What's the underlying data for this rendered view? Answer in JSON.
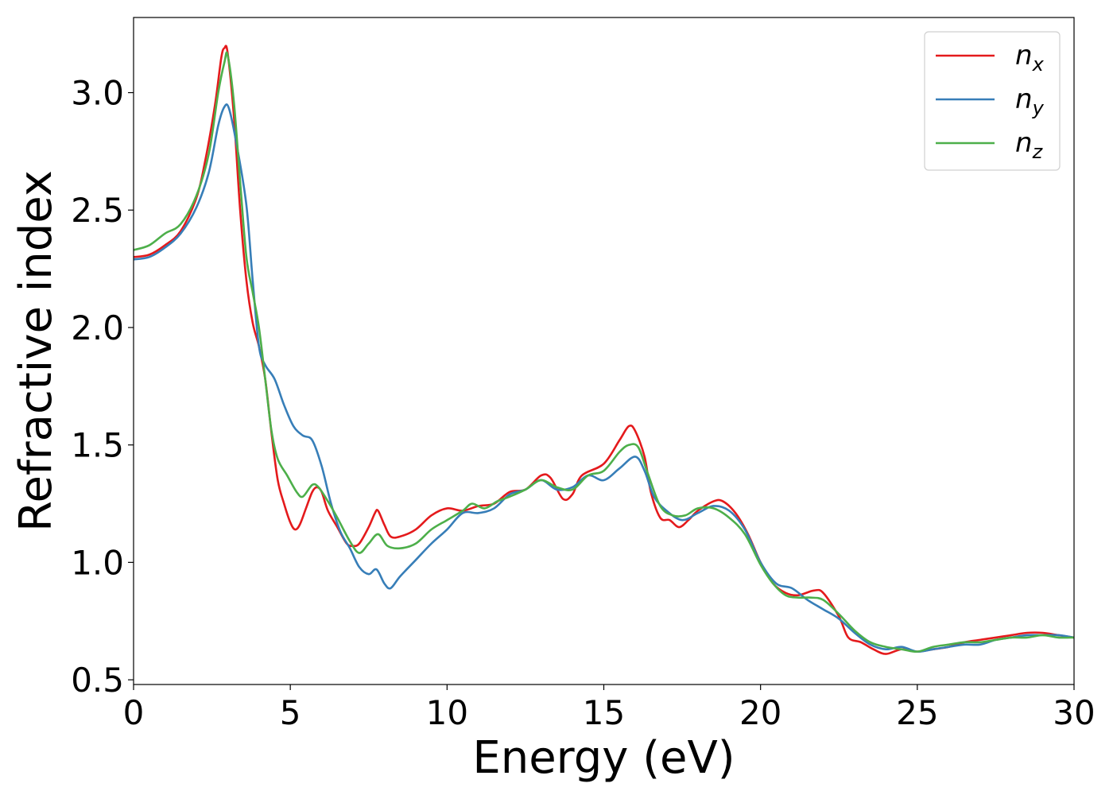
{
  "chart_data": {
    "type": "line",
    "title": "",
    "xlabel": "Energy (eV)",
    "ylabel": "Refractive index",
    "xlim": [
      0,
      30
    ],
    "ylim": [
      0.48,
      3.32
    ],
    "xticks": [
      0,
      5,
      10,
      15,
      20,
      25,
      30
    ],
    "yticks": [
      0.5,
      1.0,
      1.5,
      2.0,
      2.5,
      3.0
    ],
    "xtick_labels": [
      "0",
      "5",
      "10",
      "15",
      "20",
      "25",
      "30"
    ],
    "ytick_labels": [
      "0.5",
      "1.0",
      "1.5",
      "2.0",
      "2.5",
      "3.0"
    ],
    "grid": false,
    "legend": {
      "placement": "top-right"
    },
    "series": [
      {
        "name": "n",
        "sub": "x",
        "color": "#e41a1c",
        "points": [
          [
            0,
            2.3
          ],
          [
            0.5,
            2.31
          ],
          [
            1,
            2.35
          ],
          [
            1.5,
            2.41
          ],
          [
            2,
            2.55
          ],
          [
            2.3,
            2.72
          ],
          [
            2.6,
            2.95
          ],
          [
            2.8,
            3.15
          ],
          [
            2.9,
            3.19
          ],
          [
            3.0,
            3.17
          ],
          [
            3.2,
            2.9
          ],
          [
            3.4,
            2.5
          ],
          [
            3.6,
            2.2
          ],
          [
            3.8,
            2.02
          ],
          [
            4.0,
            1.92
          ],
          [
            4.2,
            1.78
          ],
          [
            4.4,
            1.55
          ],
          [
            4.6,
            1.35
          ],
          [
            4.8,
            1.25
          ],
          [
            5.0,
            1.17
          ],
          [
            5.15,
            1.14
          ],
          [
            5.3,
            1.16
          ],
          [
            5.5,
            1.23
          ],
          [
            5.7,
            1.3
          ],
          [
            5.85,
            1.32
          ],
          [
            6.0,
            1.3
          ],
          [
            6.2,
            1.22
          ],
          [
            6.5,
            1.15
          ],
          [
            6.8,
            1.08
          ],
          [
            7.0,
            1.07
          ],
          [
            7.2,
            1.08
          ],
          [
            7.5,
            1.15
          ],
          [
            7.7,
            1.21
          ],
          [
            7.8,
            1.22
          ],
          [
            8.0,
            1.16
          ],
          [
            8.2,
            1.11
          ],
          [
            8.5,
            1.11
          ],
          [
            9.0,
            1.14
          ],
          [
            9.5,
            1.2
          ],
          [
            10,
            1.23
          ],
          [
            10.5,
            1.22
          ],
          [
            11,
            1.24
          ],
          [
            11.5,
            1.25
          ],
          [
            12,
            1.3
          ],
          [
            12.5,
            1.31
          ],
          [
            13,
            1.37
          ],
          [
            13.3,
            1.36
          ],
          [
            13.7,
            1.27
          ],
          [
            14.0,
            1.29
          ],
          [
            14.3,
            1.37
          ],
          [
            15,
            1.42
          ],
          [
            15.5,
            1.52
          ],
          [
            15.8,
            1.58
          ],
          [
            16.0,
            1.56
          ],
          [
            16.3,
            1.45
          ],
          [
            16.5,
            1.3
          ],
          [
            16.8,
            1.19
          ],
          [
            17.1,
            1.18
          ],
          [
            17.4,
            1.15
          ],
          [
            17.7,
            1.18
          ],
          [
            18,
            1.22
          ],
          [
            18.5,
            1.26
          ],
          [
            18.8,
            1.26
          ],
          [
            19.2,
            1.21
          ],
          [
            19.6,
            1.12
          ],
          [
            20,
            1.0
          ],
          [
            20.4,
            0.91
          ],
          [
            20.8,
            0.87
          ],
          [
            21.2,
            0.86
          ],
          [
            21.7,
            0.88
          ],
          [
            22.0,
            0.87
          ],
          [
            22.5,
            0.77
          ],
          [
            22.8,
            0.68
          ],
          [
            23.2,
            0.66
          ],
          [
            23.6,
            0.63
          ],
          [
            24.0,
            0.61
          ],
          [
            24.5,
            0.63
          ],
          [
            25.0,
            0.62
          ],
          [
            25.5,
            0.63
          ],
          [
            26,
            0.64
          ],
          [
            26.5,
            0.66
          ],
          [
            27,
            0.67
          ],
          [
            27.5,
            0.68
          ],
          [
            28,
            0.69
          ],
          [
            28.5,
            0.7
          ],
          [
            29,
            0.7
          ],
          [
            29.5,
            0.69
          ],
          [
            30,
            0.68
          ]
        ]
      },
      {
        "name": "n",
        "sub": "y",
        "color": "#377eb8",
        "points": [
          [
            0,
            2.29
          ],
          [
            0.5,
            2.3
          ],
          [
            1,
            2.34
          ],
          [
            1.5,
            2.4
          ],
          [
            2,
            2.51
          ],
          [
            2.4,
            2.66
          ],
          [
            2.7,
            2.86
          ],
          [
            2.9,
            2.94
          ],
          [
            3.05,
            2.93
          ],
          [
            3.3,
            2.77
          ],
          [
            3.6,
            2.52
          ],
          [
            3.8,
            2.2
          ],
          [
            4.0,
            1.92
          ],
          [
            4.2,
            1.84
          ],
          [
            4.5,
            1.78
          ],
          [
            4.8,
            1.67
          ],
          [
            5.1,
            1.58
          ],
          [
            5.4,
            1.54
          ],
          [
            5.7,
            1.52
          ],
          [
            6.0,
            1.41
          ],
          [
            6.3,
            1.25
          ],
          [
            6.6,
            1.13
          ],
          [
            6.9,
            1.06
          ],
          [
            7.2,
            0.98
          ],
          [
            7.5,
            0.95
          ],
          [
            7.75,
            0.97
          ],
          [
            8.0,
            0.91
          ],
          [
            8.2,
            0.89
          ],
          [
            8.5,
            0.94
          ],
          [
            9.0,
            1.01
          ],
          [
            9.5,
            1.08
          ],
          [
            10,
            1.14
          ],
          [
            10.5,
            1.21
          ],
          [
            11,
            1.21
          ],
          [
            11.5,
            1.23
          ],
          [
            12,
            1.29
          ],
          [
            12.5,
            1.31
          ],
          [
            13,
            1.35
          ],
          [
            13.5,
            1.31
          ],
          [
            14,
            1.32
          ],
          [
            14.5,
            1.37
          ],
          [
            15,
            1.35
          ],
          [
            15.5,
            1.4
          ],
          [
            16.0,
            1.45
          ],
          [
            16.3,
            1.39
          ],
          [
            16.6,
            1.28
          ],
          [
            17,
            1.22
          ],
          [
            17.5,
            1.18
          ],
          [
            18,
            1.21
          ],
          [
            18.5,
            1.24
          ],
          [
            19,
            1.22
          ],
          [
            19.5,
            1.14
          ],
          [
            20,
            1.0
          ],
          [
            20.5,
            0.91
          ],
          [
            21,
            0.89
          ],
          [
            21.5,
            0.84
          ],
          [
            22,
            0.8
          ],
          [
            22.5,
            0.76
          ],
          [
            23,
            0.7
          ],
          [
            23.5,
            0.65
          ],
          [
            24,
            0.63
          ],
          [
            24.5,
            0.64
          ],
          [
            25,
            0.62
          ],
          [
            25.5,
            0.63
          ],
          [
            26,
            0.64
          ],
          [
            26.5,
            0.65
          ],
          [
            27,
            0.65
          ],
          [
            27.5,
            0.67
          ],
          [
            28,
            0.68
          ],
          [
            28.5,
            0.69
          ],
          [
            29,
            0.69
          ],
          [
            29.5,
            0.69
          ],
          [
            30,
            0.68
          ]
        ]
      },
      {
        "name": "n",
        "sub": "z",
        "color": "#4daf4a",
        "points": [
          [
            0,
            2.33
          ],
          [
            0.5,
            2.35
          ],
          [
            1,
            2.4
          ],
          [
            1.5,
            2.44
          ],
          [
            2,
            2.56
          ],
          [
            2.4,
            2.74
          ],
          [
            2.7,
            3.0
          ],
          [
            2.9,
            3.13
          ],
          [
            3.0,
            3.16
          ],
          [
            3.2,
            2.96
          ],
          [
            3.4,
            2.62
          ],
          [
            3.6,
            2.3
          ],
          [
            3.8,
            2.15
          ],
          [
            4.0,
            2.0
          ],
          [
            4.2,
            1.78
          ],
          [
            4.4,
            1.56
          ],
          [
            4.6,
            1.44
          ],
          [
            4.9,
            1.37
          ],
          [
            5.2,
            1.3
          ],
          [
            5.4,
            1.28
          ],
          [
            5.7,
            1.33
          ],
          [
            5.9,
            1.32
          ],
          [
            6.2,
            1.26
          ],
          [
            6.5,
            1.19
          ],
          [
            6.9,
            1.09
          ],
          [
            7.2,
            1.04
          ],
          [
            7.5,
            1.08
          ],
          [
            7.8,
            1.12
          ],
          [
            8.1,
            1.07
          ],
          [
            8.5,
            1.06
          ],
          [
            9.0,
            1.08
          ],
          [
            9.5,
            1.14
          ],
          [
            10,
            1.18
          ],
          [
            10.5,
            1.22
          ],
          [
            10.8,
            1.25
          ],
          [
            11.2,
            1.23
          ],
          [
            11.6,
            1.26
          ],
          [
            12,
            1.28
          ],
          [
            12.5,
            1.31
          ],
          [
            13,
            1.35
          ],
          [
            13.5,
            1.32
          ],
          [
            14,
            1.31
          ],
          [
            14.5,
            1.37
          ],
          [
            15,
            1.39
          ],
          [
            15.5,
            1.47
          ],
          [
            15.8,
            1.5
          ],
          [
            16.1,
            1.49
          ],
          [
            16.4,
            1.38
          ],
          [
            16.8,
            1.24
          ],
          [
            17.2,
            1.2
          ],
          [
            17.6,
            1.2
          ],
          [
            18,
            1.23
          ],
          [
            18.5,
            1.23
          ],
          [
            19,
            1.19
          ],
          [
            19.5,
            1.12
          ],
          [
            20,
            0.99
          ],
          [
            20.4,
            0.91
          ],
          [
            20.8,
            0.86
          ],
          [
            21.2,
            0.85
          ],
          [
            21.6,
            0.85
          ],
          [
            22.0,
            0.84
          ],
          [
            22.5,
            0.78
          ],
          [
            23,
            0.71
          ],
          [
            23.5,
            0.66
          ],
          [
            24,
            0.64
          ],
          [
            24.5,
            0.63
          ],
          [
            25,
            0.62
          ],
          [
            25.5,
            0.64
          ],
          [
            26,
            0.65
          ],
          [
            26.5,
            0.66
          ],
          [
            27,
            0.66
          ],
          [
            27.5,
            0.67
          ],
          [
            28,
            0.68
          ],
          [
            28.5,
            0.68
          ],
          [
            29,
            0.69
          ],
          [
            29.5,
            0.68
          ],
          [
            30,
            0.68
          ]
        ]
      }
    ]
  }
}
